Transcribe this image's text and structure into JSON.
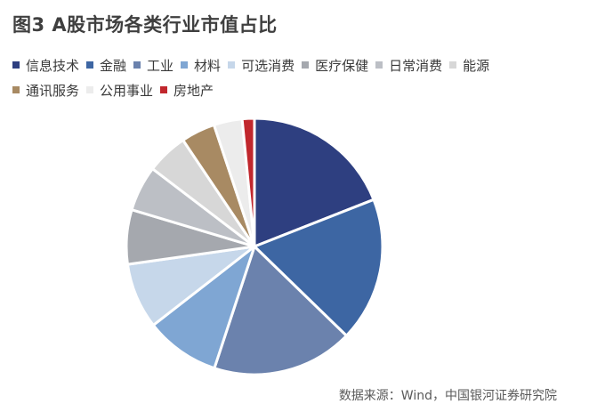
{
  "title": "图3  A股市场各类行业市值占比",
  "source": "数据来源：Wind，中国银河证券研究院",
  "chart_data": {
    "type": "pie",
    "title": "图3  A股市场各类行业市值占比",
    "legend_position": "top",
    "start_angle_deg": 0,
    "direction": "clockwise",
    "categories": [
      "信息技术",
      "金融",
      "工业",
      "材料",
      "可选消费",
      "医疗保健",
      "日常消费",
      "能源",
      "通讯服务",
      "公用事业",
      "房地产"
    ],
    "values": [
      18.6,
      17.8,
      17.4,
      9.2,
      8.1,
      6.7,
      5.6,
      5.1,
      4.2,
      3.5,
      1.5
    ],
    "colors": [
      "#2e3f80",
      "#3d66a3",
      "#6b82ad",
      "#7fa6d3",
      "#c6d7ea",
      "#a5a8ae",
      "#bcbfc5",
      "#d7d7d7",
      "#a88a63",
      "#ececec",
      "#c1272d"
    ]
  }
}
